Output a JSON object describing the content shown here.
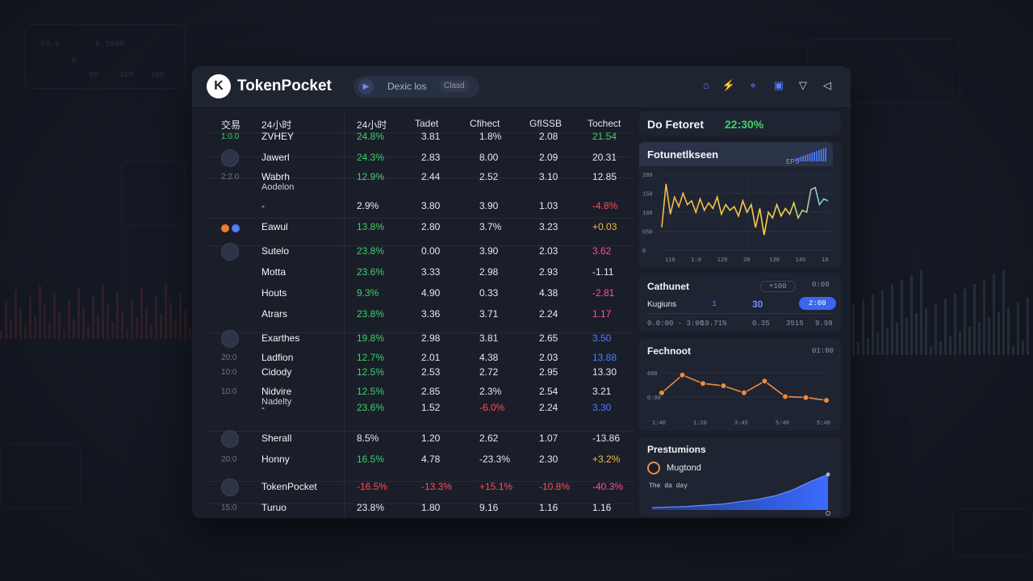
{
  "bg_ghost": {
    "top_left_labels": [
      "50.0",
      "0.1000",
      "0",
      "00",
      "100",
      "100"
    ]
  },
  "header": {
    "brand": "TokenPocket",
    "logo_glyph": "K",
    "pill_text": "Dexic los",
    "pill_sub": "Clasd"
  },
  "table": {
    "headers": [
      "交易",
      "24小时",
      "24小时",
      "Tadet",
      "Cfihect",
      "GfISSB",
      "Tochect"
    ],
    "rows": [
      {
        "id": "1:0.0",
        "name": "ZVHEY",
        "c1": "24.8%",
        "c2": "3.81",
        "c3": "1.8%",
        "c4": "2.08",
        "c5": "21.54",
        "c1c": "g",
        "c5c": "g"
      },
      {
        "id": "",
        "name": "Jawerl",
        "c1": "24.3%",
        "c2": "2.83",
        "c3": "8.00",
        "c4": "2.09",
        "c5": "20.31",
        "c1c": "g",
        "c5c": ""
      },
      {
        "id": "2:2.0",
        "name": "Wabrh",
        "sub": "Aodelon",
        "c1": "12.9%",
        "c2": "2.44",
        "c3": "2.52",
        "c4": "3.10",
        "c5": "12.85",
        "c1c": "g",
        "c5c": ""
      },
      {
        "id": "",
        "name": "-",
        "c1": "2.9%",
        "c2": "3.80",
        "c3": "3.90",
        "c4": "1.03",
        "c5": "-4.8%",
        "c1c": "",
        "c5c": "r"
      },
      {
        "id": "",
        "name": "Eawul",
        "c1": "13.8%",
        "c2": "2.80",
        "c3": "3.7%",
        "c4": "3.23",
        "c5": "+0.03",
        "c1c": "g",
        "c5c": "o"
      },
      {
        "id": "",
        "name": "Sutelo",
        "c1": "23.8%",
        "c2": "0.00",
        "c3": "3.90",
        "c4": "2.03",
        "c5": "3.62",
        "c1c": "g",
        "c5c": "m"
      },
      {
        "id": "",
        "name": "Motta",
        "c1": "23.6%",
        "c2": "3.33",
        "c3": "2.98",
        "c4": "2.93",
        "c5": "-1.11",
        "c1c": "g",
        "c5c": ""
      },
      {
        "id": "",
        "name": "Houts",
        "c1": "9.3%",
        "c2": "4.90",
        "c3": "0.33",
        "c4": "4.38",
        "c5": "-2.81",
        "c1c": "g",
        "c5c": "m"
      },
      {
        "id": "",
        "name": "Atrars",
        "c1": "23.8%",
        "c2": "3.36",
        "c3": "3.71",
        "c4": "2.24",
        "c5": "1.17",
        "c1c": "g",
        "c5c": "m"
      },
      {
        "id": "",
        "name": "Exarthes",
        "c1": "19.8%",
        "c2": "2.98",
        "c3": "3.81",
        "c4": "2.65",
        "c5": "3.50",
        "c1c": "g",
        "c5c": "b"
      },
      {
        "id": "20:0",
        "name": "Ladfion",
        "c1": "12.7%",
        "c2": "2.01",
        "c3": "4.38",
        "c4": "2.03",
        "c5": "13.88",
        "c1c": "g",
        "c5c": "b"
      },
      {
        "id": "10:0",
        "name": "Cidody",
        "c1": "12.5%",
        "c2": "2.53",
        "c3": "2.72",
        "c4": "2.95",
        "c5": "13.30",
        "c1c": "g",
        "c5c": ""
      },
      {
        "id": "10:0",
        "name": "Nidvire",
        "sub": "Nadelty",
        "c1": "12.5%",
        "c2": "2.85",
        "c3": "2.3%",
        "c4": "2.54",
        "c5": "3.21",
        "c1c": "g",
        "c5c": ""
      },
      {
        "id": "",
        "name": "-",
        "c1": "23.6%",
        "c2": "1.52",
        "c3": "-6.0%",
        "c4": "2.24",
        "c5": "3.30",
        "c1c": "g",
        "c3c": "r",
        "c5c": "b"
      },
      {
        "id": "",
        "name": "Sherall",
        "c1": "8.5%",
        "c2": "1.20",
        "c3": "2.62",
        "c4": "1.07",
        "c5": "-13.86",
        "c1c": "",
        "c5c": ""
      },
      {
        "id": "20:0",
        "name": "Honny",
        "c1": "16.5%",
        "c2": "4.78",
        "c3": "-23.3%",
        "c4": "2.30",
        "c5": "+3.2%",
        "c1c": "g",
        "c5c": "o"
      },
      {
        "id": "",
        "name": "TokenPocket",
        "c1": "-16.5%",
        "c2": "-13.3%",
        "c3": "+15.1%",
        "c4": "-10.8%",
        "c5": "-40.3%",
        "c1c": "r",
        "c2c": "r",
        "c3c": "r",
        "c4c": "r",
        "c5c": "m"
      },
      {
        "id": "15:0",
        "name": "Turuo",
        "c1": "23.8%",
        "c2": "1.80",
        "c3": "9.16",
        "c4": "1.16",
        "c5": "1.16",
        "c1c": "",
        "c5c": ""
      }
    ]
  },
  "right": {
    "top_title": "Do Fetoret",
    "top_value": "22:30%",
    "chart1_title": "Fotunetlkseen",
    "chart1_sub": "EPS",
    "chart1_yticks": [
      "200",
      "150",
      "100",
      "050",
      "0"
    ],
    "chart1_xticks": [
      "110",
      "1:0",
      "120",
      "20",
      "130",
      "140",
      "10"
    ],
    "cathunet_title": "Cathunet",
    "cathunet_pill": "+100",
    "cathunet_side": "0:00",
    "cath_row1_label": "Kugiuns",
    "cath_row1_mid": "1",
    "cath_row1_val": "30",
    "cath_row1_btn": "2:00",
    "cath_row2": [
      "0.0:00 - 3:00",
      "19.71%",
      "0.35",
      "3515",
      "9.98"
    ],
    "chart2_title": "Fechnoot",
    "chart2_side": "01:00",
    "chart2_yticks": [
      "600",
      "0:00"
    ],
    "chart2_xticks": [
      "1:40",
      "1:20",
      "3:45",
      "5:40",
      "5:40"
    ],
    "pres_title": "Prestumions",
    "pres_item": "Mugtond",
    "pres_sub": "The da day",
    "colors": {
      "accent": "#4f7dff",
      "green": "#3ed16b",
      "red": "#ff4d58",
      "orange": "#f08a3c"
    }
  },
  "chart_data": [
    {
      "type": "line",
      "title": "Fotunetlkseen",
      "x": [
        0,
        1,
        2,
        3,
        4,
        5,
        6,
        7,
        8,
        9,
        10,
        11,
        12,
        13,
        14,
        15,
        16,
        17,
        18,
        19,
        20,
        21,
        22,
        23,
        24,
        25,
        26,
        27,
        28,
        29,
        30,
        31,
        32,
        33,
        34,
        35,
        36,
        37,
        38,
        39
      ],
      "values": [
        60,
        175,
        95,
        140,
        115,
        150,
        120,
        130,
        100,
        135,
        105,
        125,
        110,
        140,
        95,
        120,
        105,
        115,
        90,
        130,
        100,
        120,
        60,
        110,
        40,
        100,
        85,
        120,
        90,
        110,
        95,
        125,
        85,
        105,
        100,
        160,
        165,
        120,
        135,
        130
      ],
      "ylim": [
        0,
        200
      ]
    },
    {
      "type": "line",
      "title": "Fechnoot",
      "x": [
        0,
        1,
        2,
        3,
        4,
        5,
        6,
        7,
        8
      ],
      "values": [
        40,
        78,
        60,
        55,
        40,
        65,
        32,
        30,
        24
      ],
      "ylim": [
        0,
        100
      ]
    },
    {
      "type": "area",
      "title": "Prestumions",
      "x": [
        0,
        1,
        2,
        3,
        4,
        5,
        6,
        7,
        8,
        9,
        10
      ],
      "values": [
        4,
        5,
        6,
        8,
        10,
        14,
        18,
        24,
        34,
        48,
        60
      ],
      "ylim": [
        0,
        60
      ]
    }
  ]
}
